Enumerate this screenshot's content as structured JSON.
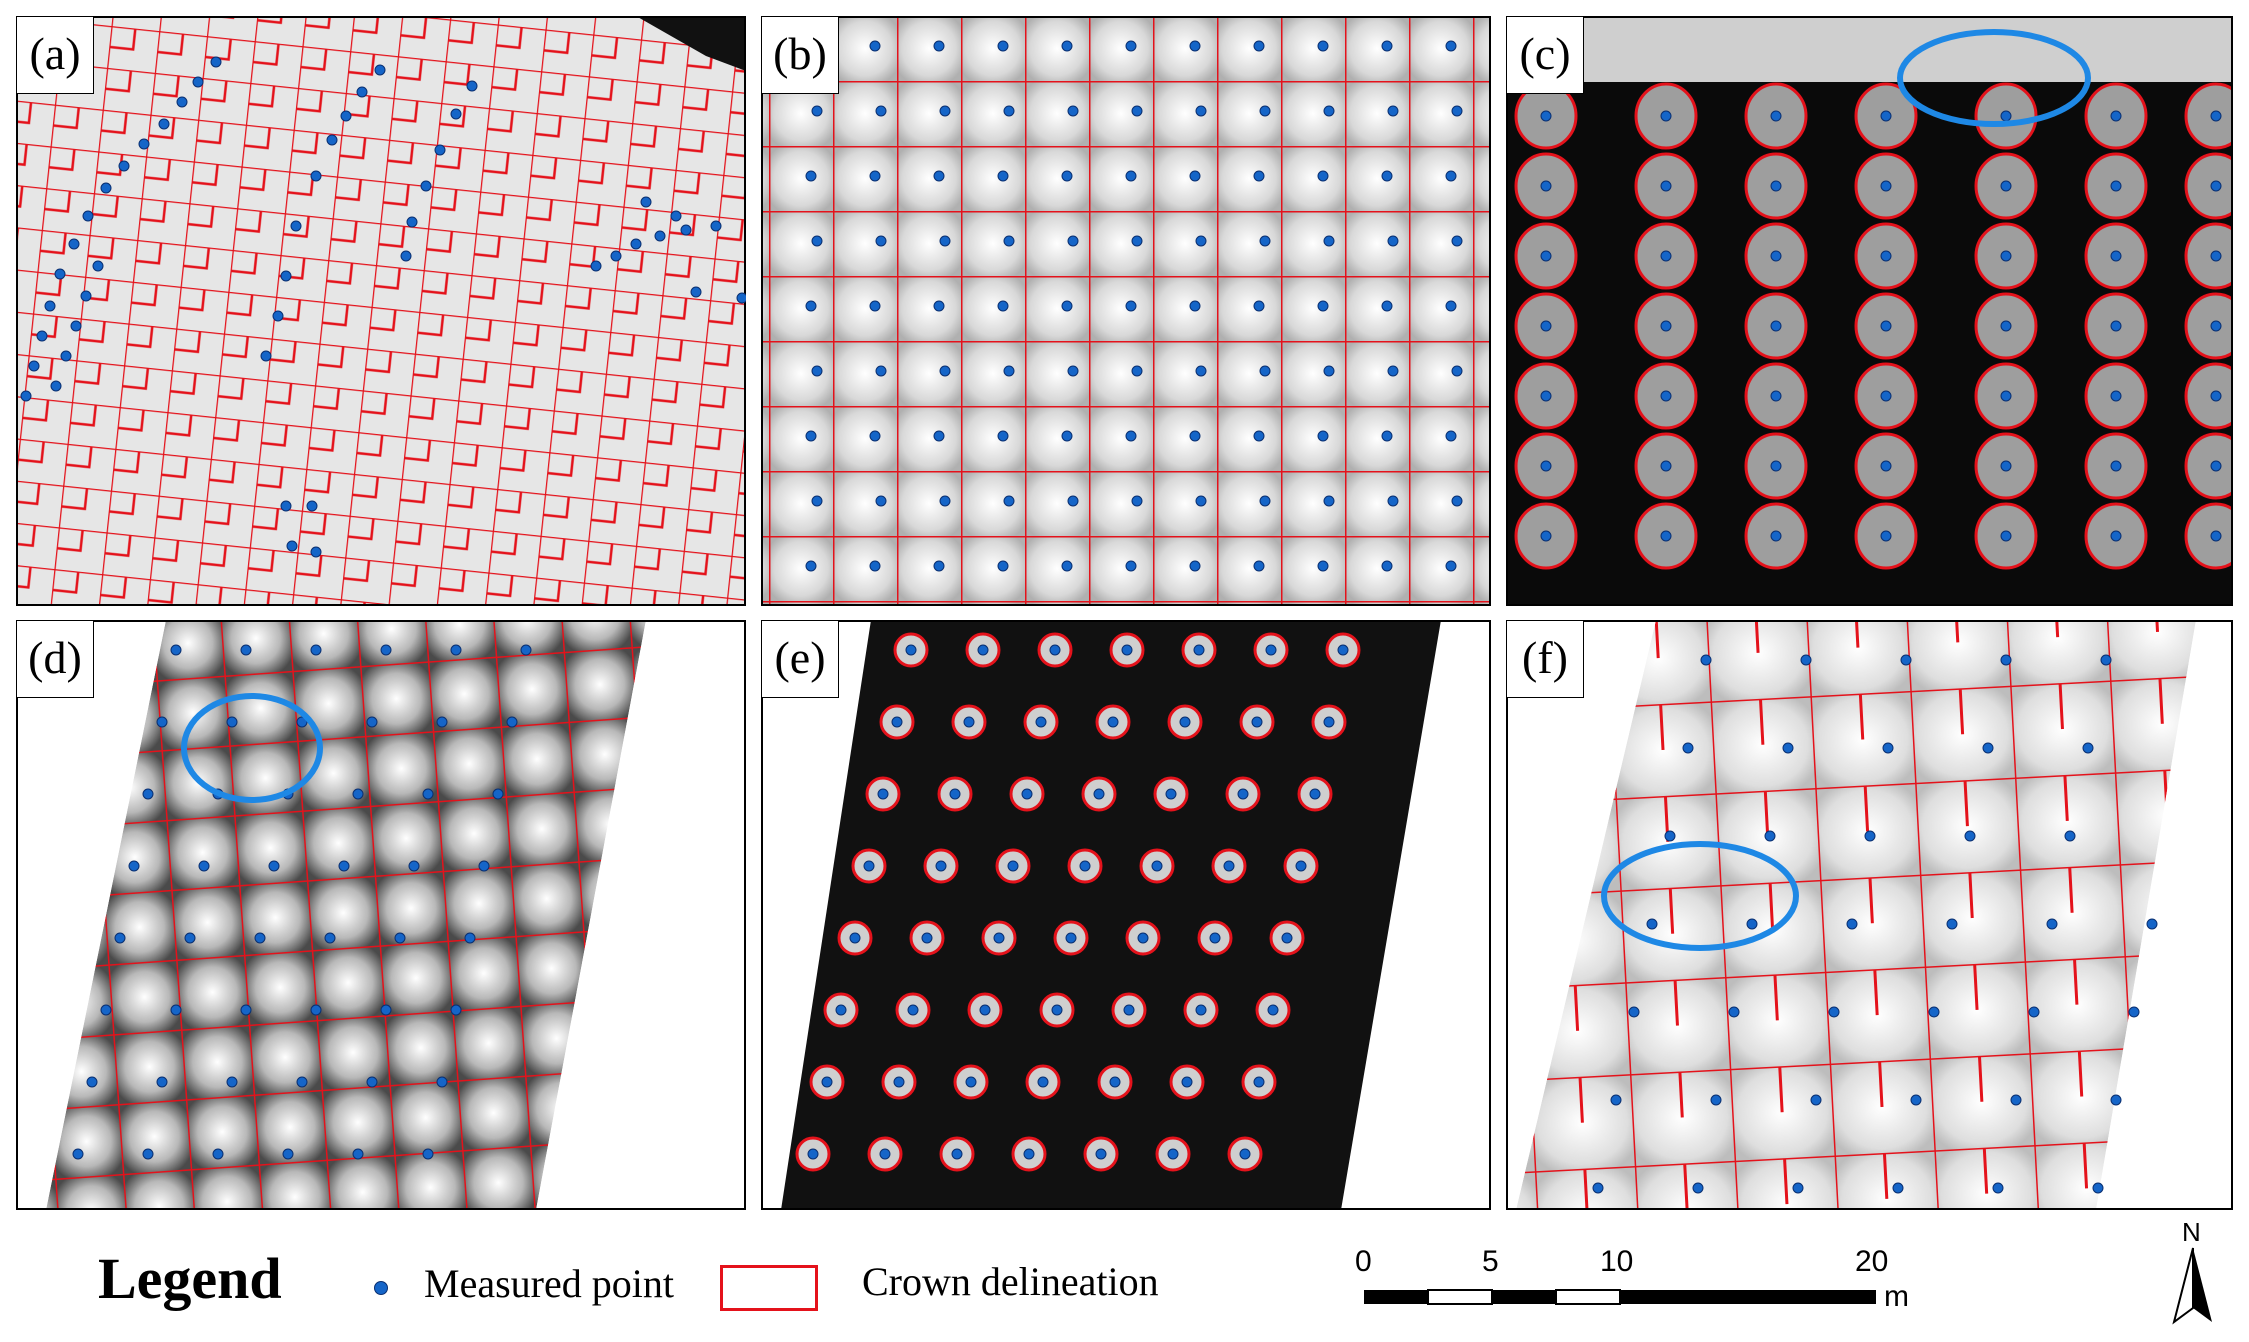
{
  "panels": [
    {
      "id": "a",
      "label": "(a)"
    },
    {
      "id": "b",
      "label": "(b)"
    },
    {
      "id": "c",
      "label": "(c)"
    },
    {
      "id": "d",
      "label": "(d)"
    },
    {
      "id": "e",
      "label": "(e)"
    },
    {
      "id": "f",
      "label": "(f)"
    }
  ],
  "legend": {
    "title": "Legend",
    "point_label": "Measured point",
    "crown_label": "Crown delineation"
  },
  "scale_bar": {
    "ticks": [
      "0",
      "5",
      "10",
      "20"
    ],
    "unit": "m"
  },
  "north": {
    "label": "N"
  },
  "colors": {
    "crown": "#e4121b",
    "point": "#1565c8",
    "highlight": "#1e88e5"
  }
}
